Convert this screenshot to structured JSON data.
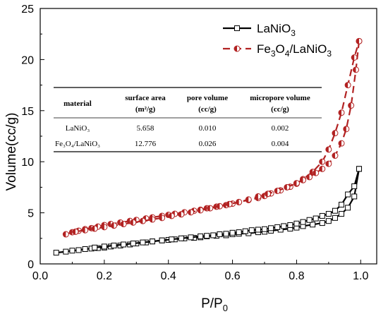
{
  "chart_data": {
    "type": "line",
    "xlabel": "P/P",
    "xlabel_sub": "0",
    "ylabel": "Volume(cc/g)",
    "xlim": [
      0.0,
      1.05
    ],
    "ylim": [
      0,
      25
    ],
    "xticks": [
      "0.0",
      "0.2",
      "0.4",
      "0.6",
      "0.8",
      "1.0"
    ],
    "xtick_values": [
      0.0,
      0.2,
      0.4,
      0.6,
      0.8,
      1.0
    ],
    "yticks": [
      "0",
      "5",
      "10",
      "15",
      "20",
      "25"
    ],
    "ytick_values": [
      0,
      5,
      10,
      15,
      20,
      25
    ],
    "legend_position": "top-right",
    "series": [
      {
        "name": "LaNiO3",
        "name_main": "LaNiO",
        "name_sub": "3",
        "color": "#000000",
        "marker": "open-square",
        "line": "solid",
        "adsorption": {
          "x": [
            0.05,
            0.08,
            0.1,
            0.12,
            0.14,
            0.16,
            0.18,
            0.2,
            0.22,
            0.25,
            0.28,
            0.3,
            0.33,
            0.35,
            0.38,
            0.4,
            0.42,
            0.45,
            0.48,
            0.5,
            0.52,
            0.55,
            0.58,
            0.6,
            0.62,
            0.65,
            0.68,
            0.7,
            0.72,
            0.75,
            0.78,
            0.8,
            0.82,
            0.85,
            0.88,
            0.9,
            0.92,
            0.94,
            0.96,
            0.98,
            0.995
          ],
          "y": [
            1.1,
            1.2,
            1.3,
            1.35,
            1.45,
            1.5,
            1.55,
            1.6,
            1.7,
            1.8,
            1.9,
            2.0,
            2.1,
            2.2,
            2.3,
            2.35,
            2.4,
            2.5,
            2.55,
            2.6,
            2.7,
            2.75,
            2.8,
            2.9,
            2.95,
            3.0,
            3.1,
            3.15,
            3.25,
            3.35,
            3.45,
            3.55,
            3.7,
            3.85,
            4.0,
            4.2,
            4.5,
            4.9,
            5.5,
            6.6,
            9.3
          ]
        },
        "desorption": {
          "x": [
            0.995,
            0.98,
            0.96,
            0.94,
            0.92,
            0.9,
            0.88,
            0.86,
            0.84,
            0.82,
            0.8,
            0.78,
            0.76,
            0.74,
            0.72,
            0.7,
            0.68,
            0.66,
            0.64,
            0.62,
            0.6,
            0.58,
            0.56,
            0.54,
            0.52,
            0.5,
            0.47,
            0.44,
            0.41,
            0.38,
            0.35,
            0.32,
            0.29,
            0.26,
            0.23,
            0.2,
            0.17
          ],
          "y": [
            9.3,
            7.6,
            6.8,
            5.8,
            5.2,
            4.9,
            4.7,
            4.45,
            4.3,
            4.1,
            3.95,
            3.8,
            3.7,
            3.6,
            3.5,
            3.4,
            3.35,
            3.3,
            3.2,
            3.1,
            3.05,
            2.95,
            2.9,
            2.8,
            2.75,
            2.7,
            2.6,
            2.5,
            2.4,
            2.3,
            2.2,
            2.1,
            2.0,
            1.9,
            1.8,
            1.7,
            1.6
          ]
        }
      },
      {
        "name": "Fe3O4/LaNiO3",
        "name_parts": [
          "Fe",
          "3",
          "O",
          "4",
          "/LaNiO",
          "3"
        ],
        "color": "#b22222",
        "marker": "half-filled-circle",
        "line": "dashed",
        "adsorption": {
          "x": [
            0.08,
            0.1,
            0.12,
            0.14,
            0.16,
            0.18,
            0.2,
            0.22,
            0.25,
            0.28,
            0.3,
            0.33,
            0.35,
            0.38,
            0.4,
            0.42,
            0.45,
            0.48,
            0.5,
            0.52,
            0.55,
            0.58,
            0.6,
            0.62,
            0.65,
            0.68,
            0.7,
            0.72,
            0.75,
            0.78,
            0.8,
            0.82,
            0.85,
            0.88,
            0.9,
            0.92,
            0.94,
            0.96,
            0.98,
            0.995
          ],
          "y": [
            2.9,
            3.1,
            3.25,
            3.4,
            3.5,
            3.65,
            3.8,
            3.9,
            4.05,
            4.2,
            4.3,
            4.45,
            4.55,
            4.7,
            4.8,
            4.9,
            5.05,
            5.2,
            5.3,
            5.45,
            5.6,
            5.75,
            5.9,
            6.05,
            6.25,
            6.45,
            6.65,
            6.9,
            7.2,
            7.55,
            7.85,
            8.3,
            9.0,
            10.0,
            11.2,
            12.8,
            14.8,
            17.5,
            20.2,
            21.8
          ]
        },
        "desorption": {
          "x": [
            0.995,
            0.985,
            0.97,
            0.955,
            0.94,
            0.92,
            0.9,
            0.88,
            0.86,
            0.84,
            0.82,
            0.8,
            0.77,
            0.74,
            0.71,
            0.68,
            0.65,
            0.62,
            0.59,
            0.56,
            0.53,
            0.5,
            0.47,
            0.44,
            0.41,
            0.38,
            0.35,
            0.32,
            0.29,
            0.26,
            0.23,
            0.2,
            0.17,
            0.14,
            0.11
          ],
          "y": [
            21.8,
            19.0,
            15.5,
            13.2,
            11.8,
            10.6,
            9.8,
            9.3,
            8.9,
            8.5,
            8.2,
            7.9,
            7.5,
            7.15,
            6.85,
            6.6,
            6.3,
            6.05,
            5.85,
            5.65,
            5.45,
            5.25,
            5.05,
            4.85,
            4.7,
            4.5,
            4.35,
            4.2,
            4.05,
            3.9,
            3.75,
            3.6,
            3.45,
            3.3,
            3.15
          ]
        }
      }
    ],
    "table": {
      "headers": [
        {
          "line1": "material",
          "line2": ""
        },
        {
          "line1": "surface area",
          "line2": "(m²/g)"
        },
        {
          "line1": "pore volume",
          "line2": "(cc/g)"
        },
        {
          "line1": "micropore volume",
          "line2": "(cc/g)"
        }
      ],
      "rows": [
        [
          "LaNiO₃",
          "5.658",
          "0.010",
          "0.002"
        ],
        [
          "Fe₃O₄/LaNiO₃",
          "12.776",
          "0.026",
          "0.004"
        ]
      ]
    }
  }
}
